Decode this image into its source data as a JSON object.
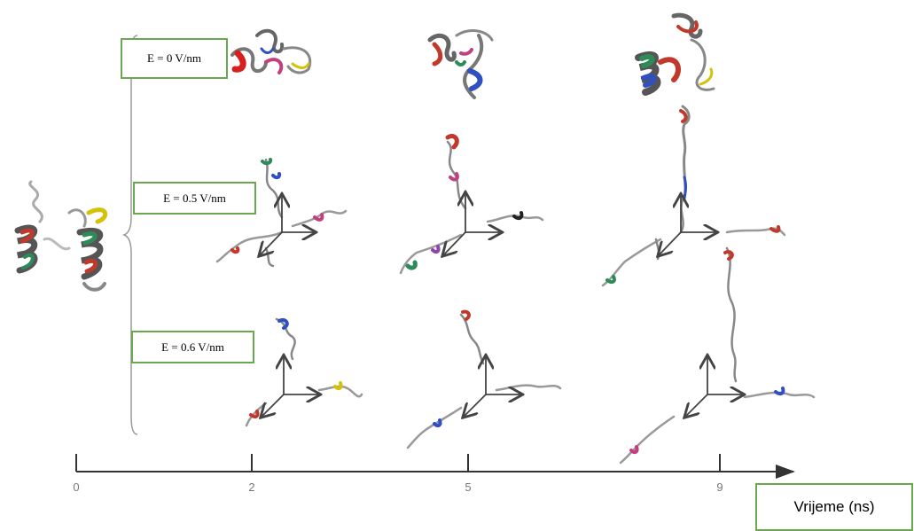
{
  "field_labels": [
    "E = 0 V/nm",
    "E = 0.5 V/nm",
    "E = 0.6 V/nm"
  ],
  "time_axis": {
    "title": "Vrijeme (ns)",
    "ticks": [
      "0",
      "2",
      "5",
      "9"
    ]
  },
  "colors": {
    "label_border": "#6aa84f",
    "axis": "#333333",
    "bracket": "#999999"
  },
  "structure_icons": {
    "initial": "folded-peptide-helix",
    "field_0": "compact-peptide",
    "field_nonzero": "unfolded-peptide-chain",
    "reference_axes": "xyz-axes-arrows"
  }
}
